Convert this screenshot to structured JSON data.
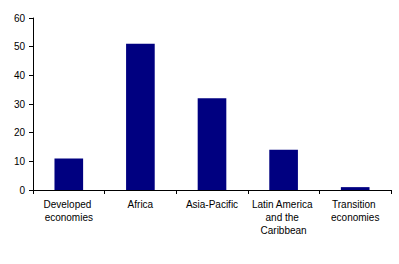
{
  "chart_data": {
    "type": "bar",
    "categories": [
      "Developed economies",
      "Africa",
      "Asia-Pacific",
      "Latin America and the Caribbean",
      "Transition economies"
    ],
    "values": [
      11,
      51,
      32,
      14,
      1
    ],
    "color": "#000080",
    "ylim": [
      0,
      60
    ],
    "yticks": [
      0,
      10,
      20,
      30,
      40,
      50,
      60
    ],
    "grid": false
  }
}
